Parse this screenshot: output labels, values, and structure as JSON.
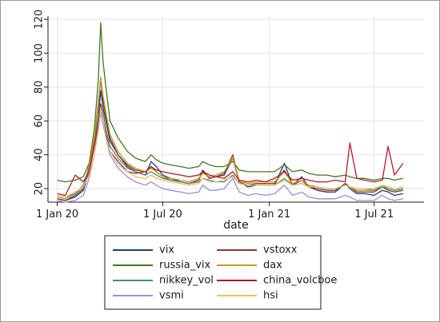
{
  "chart_data": {
    "type": "line",
    "title": "",
    "xlabel": "date",
    "ylabel": "",
    "x_ticks": [
      "1 Jan 20",
      "1 Jul 20",
      "1 Jan 21",
      "1 Jul 21"
    ],
    "y_ticks": [
      20,
      40,
      60,
      80,
      100,
      120
    ],
    "xlim": [
      "2019-12-16",
      "2021-09-25"
    ],
    "ylim": [
      12,
      122
    ],
    "grid": true,
    "legend_position": "bottom",
    "legend_columns": 2,
    "dates": [
      "2020-01-01",
      "2020-01-15",
      "2020-02-01",
      "2020-02-15",
      "2020-02-25",
      "2020-03-05",
      "2020-03-12",
      "2020-03-16",
      "2020-03-20",
      "2020-03-25",
      "2020-04-01",
      "2020-04-15",
      "2020-05-01",
      "2020-05-15",
      "2020-06-01",
      "2020-06-11",
      "2020-06-20",
      "2020-07-01",
      "2020-07-15",
      "2020-08-01",
      "2020-08-15",
      "2020-09-01",
      "2020-09-08",
      "2020-09-20",
      "2020-10-01",
      "2020-10-15",
      "2020-10-30",
      "2020-11-10",
      "2020-11-25",
      "2020-12-10",
      "2020-12-25",
      "2021-01-10",
      "2021-01-27",
      "2021-02-10",
      "2021-02-26",
      "2021-03-10",
      "2021-03-25",
      "2021-04-10",
      "2021-04-25",
      "2021-05-12",
      "2021-05-20",
      "2021-06-01",
      "2021-06-15",
      "2021-07-01",
      "2021-07-15",
      "2021-07-25",
      "2021-08-05",
      "2021-08-20"
    ],
    "series": [
      {
        "name": "vix",
        "color": "#1f3d7a",
        "values": [
          14,
          13,
          15,
          19,
          30,
          45,
          62,
          78,
          68,
          60,
          48,
          40,
          33,
          30,
          28,
          36,
          33,
          28,
          26,
          24,
          23,
          25,
          31,
          26,
          27,
          28,
          38,
          24,
          21,
          22,
          22,
          22,
          35,
          22,
          27,
          21,
          19,
          18,
          18,
          23,
          20,
          17,
          17,
          16,
          19,
          18,
          16,
          17
        ]
      },
      {
        "name": "vstoxx",
        "color": "#8a3a32",
        "values": [
          14,
          13,
          16,
          20,
          33,
          48,
          70,
          85,
          72,
          63,
          50,
          40,
          34,
          31,
          30,
          33,
          30,
          27,
          25,
          24,
          23,
          25,
          30,
          26,
          27,
          29,
          40,
          24,
          22,
          23,
          23,
          23,
          31,
          22,
          25,
          21,
          20,
          19,
          19,
          23,
          21,
          18,
          18,
          18,
          21,
          19,
          18,
          19
        ]
      },
      {
        "name": "russia_vix",
        "color": "#3e7a24",
        "values": [
          25,
          24,
          25,
          27,
          35,
          55,
          85,
          118,
          95,
          80,
          60,
          50,
          42,
          38,
          36,
          40,
          37,
          35,
          34,
          33,
          32,
          33,
          36,
          34,
          33,
          33,
          36,
          31,
          30,
          30,
          30,
          30,
          34,
          30,
          31,
          29,
          28,
          28,
          27,
          28,
          27,
          26,
          26,
          25,
          26,
          26,
          25,
          26
        ]
      },
      {
        "name": "dax",
        "color": "#c99a1a",
        "values": [
          15,
          14,
          17,
          21,
          34,
          50,
          72,
          86,
          75,
          65,
          52,
          42,
          35,
          32,
          30,
          32,
          30,
          27,
          26,
          25,
          24,
          26,
          29,
          27,
          28,
          30,
          38,
          25,
          23,
          24,
          24,
          24,
          30,
          23,
          25,
          22,
          21,
          20,
          20,
          22,
          21,
          19,
          19,
          19,
          22,
          20,
          19,
          20
        ]
      },
      {
        "name": "nikkey_vol",
        "color": "#4e8a7a",
        "values": [
          16,
          15,
          17,
          22,
          30,
          45,
          60,
          70,
          65,
          55,
          45,
          38,
          32,
          30,
          28,
          30,
          28,
          26,
          25,
          24,
          23,
          24,
          26,
          25,
          24,
          24,
          28,
          23,
          22,
          22,
          22,
          22,
          26,
          22,
          23,
          21,
          21,
          20,
          20,
          22,
          21,
          20,
          20,
          19,
          21,
          20,
          19,
          20
        ]
      },
      {
        "name": "china_volcboe",
        "color": "#b2192e",
        "values": [
          17,
          16,
          28,
          24,
          30,
          45,
          58,
          70,
          60,
          52,
          42,
          36,
          30,
          29,
          30,
          33,
          31,
          30,
          29,
          28,
          27,
          28,
          30,
          28,
          27,
          26,
          30,
          25,
          24,
          25,
          24,
          26,
          30,
          25,
          26,
          25,
          24,
          24,
          25,
          24,
          47,
          26,
          25,
          24,
          25,
          45,
          28,
          35
        ]
      },
      {
        "name": "vsmi",
        "color": "#9d8ed6",
        "values": [
          13,
          12,
          13,
          16,
          26,
          40,
          55,
          65,
          58,
          50,
          40,
          32,
          27,
          24,
          22,
          24,
          22,
          20,
          19,
          18,
          17,
          18,
          22,
          19,
          19,
          20,
          26,
          18,
          16,
          17,
          16,
          17,
          22,
          16,
          18,
          15,
          14,
          14,
          14,
          16,
          15,
          13,
          13,
          13,
          16,
          14,
          13,
          14
        ]
      },
      {
        "name": "hsi",
        "color": "#e3c16a",
        "values": [
          16,
          15,
          18,
          21,
          28,
          40,
          55,
          68,
          60,
          50,
          42,
          34,
          30,
          27,
          26,
          28,
          26,
          25,
          24,
          23,
          22,
          23,
          26,
          24,
          24,
          25,
          27,
          23,
          22,
          22,
          22,
          22,
          25,
          22,
          23,
          21,
          21,
          20,
          20,
          22,
          21,
          20,
          20,
          20,
          22,
          21,
          20,
          21
        ]
      }
    ]
  }
}
